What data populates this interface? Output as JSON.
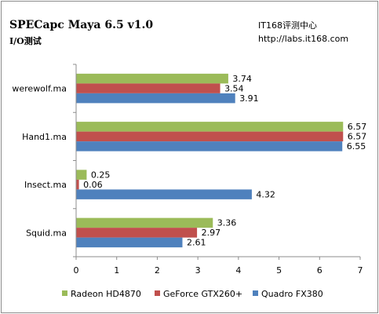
{
  "header": {
    "title": "SPECapc Maya 6.5 v1.0",
    "subtitle": "I/O测试",
    "brand_name": "IT168评测中心",
    "brand_url": "http://labs.it168.com"
  },
  "chart_data": {
    "type": "bar",
    "orientation": "horizontal",
    "categories": [
      "werewolf.ma",
      "Hand1.ma",
      "Insect.ma",
      "Squid.ma"
    ],
    "series": [
      {
        "name": "Radeon HD4870",
        "color": "#9bbb59",
        "values": [
          3.74,
          6.57,
          0.25,
          3.36
        ]
      },
      {
        "name": "GeForce GTX260+",
        "color": "#c0504d",
        "values": [
          3.54,
          6.57,
          0.06,
          2.97
        ]
      },
      {
        "name": "Quadro FX380",
        "color": "#4f81bd",
        "values": [
          3.91,
          6.55,
          4.32,
          2.61
        ]
      }
    ],
    "xlim": [
      0,
      7
    ],
    "xticks": [
      0,
      1,
      2,
      3,
      4,
      5,
      6,
      7
    ],
    "grid": false,
    "legend": "bottom"
  }
}
